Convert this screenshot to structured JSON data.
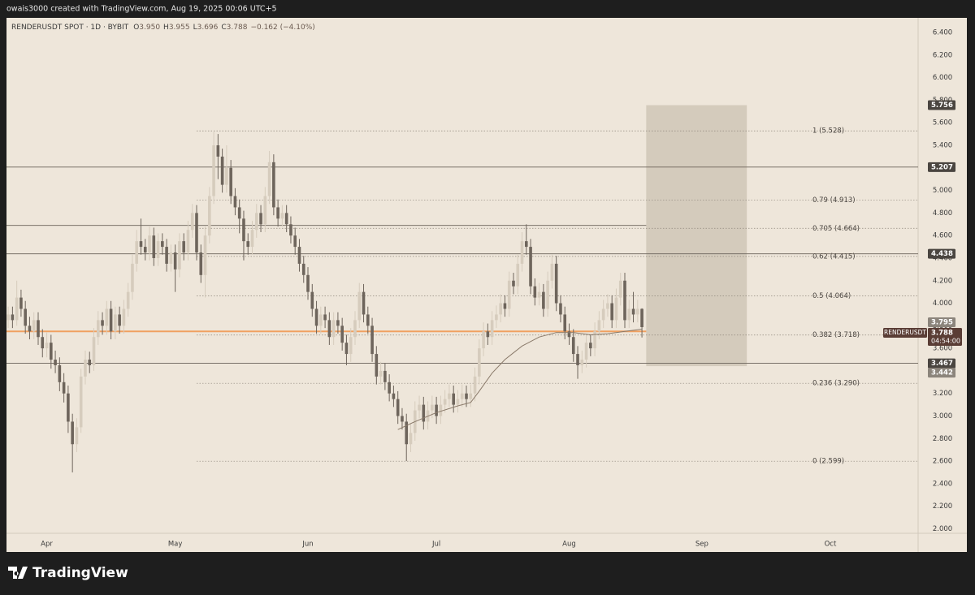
{
  "header": {
    "credit": "owais3000 created with TradingView.com, Aug 19, 2025 00:06 UTC+5"
  },
  "chart_data": {
    "type": "candlestick",
    "symbol": "RENDERUSDT SPOT · 1D · BYBIT",
    "legend": [
      {
        "key": "O",
        "value": "3.950"
      },
      {
        "key": "H",
        "value": "3.955"
      },
      {
        "key": "L",
        "value": "3.696"
      },
      {
        "key": "C",
        "value": "3.788"
      }
    ],
    "change": "−0.162 (−4.10%)",
    "symbol_tag": "RENDERUSDT",
    "countdown": "04:54:00",
    "up_color": "#d6ccbd",
    "down_color": "#6e655c",
    "xlim": [
      -0.4,
      212.5
    ],
    "xticks": [
      {
        "value": 9,
        "label": "Apr"
      },
      {
        "value": 39,
        "label": "May"
      },
      {
        "value": 70,
        "label": "Jun"
      },
      {
        "value": 100,
        "label": "Jul"
      },
      {
        "value": 131,
        "label": "Aug"
      },
      {
        "value": 162,
        "label": "Sep"
      },
      {
        "value": 192,
        "label": "Oct"
      }
    ],
    "ylim": [
      1.96,
      6.53
    ],
    "yticks": [
      {
        "value": 2.0,
        "label": "2.000"
      },
      {
        "value": 2.2,
        "label": "2.200"
      },
      {
        "value": 2.4,
        "label": "2.400"
      },
      {
        "value": 2.6,
        "label": "2.600"
      },
      {
        "value": 2.8,
        "label": "2.800"
      },
      {
        "value": 3.0,
        "label": "3.000"
      },
      {
        "value": 3.2,
        "label": "3.200"
      },
      {
        "value": 3.4,
        "label": "3.400"
      },
      {
        "value": 3.6,
        "label": "3.600"
      },
      {
        "value": 3.8,
        "label": "3.800"
      },
      {
        "value": 4.0,
        "label": "4.000"
      },
      {
        "value": 4.2,
        "label": "4.200"
      },
      {
        "value": 4.4,
        "label": "4.400"
      },
      {
        "value": 4.6,
        "label": "4.600"
      },
      {
        "value": 4.8,
        "label": "4.800"
      },
      {
        "value": 5.0,
        "label": "5.000"
      },
      {
        "value": 5.2,
        "label": "5.200"
      },
      {
        "value": 5.4,
        "label": "5.400"
      },
      {
        "value": 5.6,
        "label": "5.600"
      },
      {
        "value": 5.8,
        "label": "5.800"
      },
      {
        "value": 6.0,
        "label": "6.000"
      },
      {
        "value": 6.2,
        "label": "6.200"
      },
      {
        "value": 6.4,
        "label": "6.400"
      }
    ],
    "ohlc": [
      [
        3.85,
        3.97,
        3.78,
        3.9
      ],
      [
        3.9,
        3.97,
        3.78,
        3.85
      ],
      [
        3.85,
        4.2,
        3.8,
        4.05
      ],
      [
        4.05,
        4.12,
        3.88,
        3.95
      ],
      [
        3.95,
        4.02,
        3.73,
        3.8
      ],
      [
        3.8,
        3.88,
        3.68,
        3.75
      ],
      [
        3.75,
        3.92,
        3.68,
        3.85
      ],
      [
        3.85,
        3.92,
        3.63,
        3.7
      ],
      [
        3.7,
        3.77,
        3.52,
        3.6
      ],
      [
        3.6,
        3.74,
        3.52,
        3.65
      ],
      [
        3.65,
        3.72,
        3.42,
        3.5
      ],
      [
        3.5,
        3.58,
        3.38,
        3.45
      ],
      [
        3.45,
        3.52,
        3.22,
        3.3
      ],
      [
        3.3,
        3.38,
        3.12,
        3.2
      ],
      [
        3.2,
        3.27,
        2.85,
        2.95
      ],
      [
        2.95,
        3.02,
        2.5,
        2.75
      ],
      [
        2.75,
        2.98,
        2.68,
        2.9
      ],
      [
        2.9,
        3.42,
        2.85,
        3.35
      ],
      [
        3.35,
        3.58,
        3.28,
        3.5
      ],
      [
        3.5,
        3.57,
        3.38,
        3.45
      ],
      [
        3.45,
        3.78,
        3.4,
        3.7
      ],
      [
        3.7,
        3.93,
        3.63,
        3.85
      ],
      [
        3.85,
        3.92,
        3.72,
        3.8
      ],
      [
        3.8,
        4.02,
        3.72,
        3.95
      ],
      [
        3.95,
        4.02,
        3.68,
        3.75
      ],
      [
        3.75,
        3.97,
        3.68,
        3.9
      ],
      [
        3.9,
        3.97,
        3.73,
        3.8
      ],
      [
        3.8,
        4.03,
        3.73,
        3.95
      ],
      [
        3.95,
        4.18,
        3.88,
        4.1
      ],
      [
        4.1,
        4.43,
        4.03,
        4.35
      ],
      [
        4.35,
        4.65,
        4.28,
        4.55
      ],
      [
        4.55,
        4.75,
        4.43,
        4.5
      ],
      [
        4.5,
        4.57,
        4.38,
        4.45
      ],
      [
        4.45,
        4.68,
        4.38,
        4.6
      ],
      [
        4.6,
        4.67,
        4.33,
        4.4
      ],
      [
        4.4,
        4.62,
        4.33,
        4.55
      ],
      [
        4.55,
        4.62,
        4.43,
        4.5
      ],
      [
        4.5,
        4.57,
        4.28,
        4.35
      ],
      [
        4.35,
        4.52,
        4.28,
        4.45
      ],
      [
        4.45,
        4.52,
        4.1,
        4.3
      ],
      [
        4.3,
        4.62,
        4.23,
        4.55
      ],
      [
        4.55,
        4.62,
        4.38,
        4.45
      ],
      [
        4.45,
        4.73,
        4.38,
        4.65
      ],
      [
        4.65,
        4.88,
        4.58,
        4.8
      ],
      [
        4.8,
        4.87,
        4.38,
        4.45
      ],
      [
        4.45,
        4.52,
        4.18,
        4.25
      ],
      [
        4.25,
        4.68,
        4.05,
        4.6
      ],
      [
        4.6,
        5.03,
        4.53,
        4.95
      ],
      [
        4.95,
        5.52,
        4.88,
        5.4
      ],
      [
        5.4,
        5.5,
        5.1,
        5.3
      ],
      [
        5.3,
        5.37,
        4.98,
        5.05
      ],
      [
        5.05,
        5.4,
        4.98,
        5.2
      ],
      [
        5.2,
        5.27,
        4.88,
        4.95
      ],
      [
        4.95,
        5.02,
        4.78,
        4.85
      ],
      [
        4.85,
        4.92,
        4.62,
        4.75
      ],
      [
        4.75,
        4.82,
        4.38,
        4.55
      ],
      [
        4.55,
        4.62,
        4.43,
        4.5
      ],
      [
        4.5,
        4.73,
        4.43,
        4.65
      ],
      [
        4.65,
        4.88,
        4.58,
        4.8
      ],
      [
        4.8,
        4.87,
        4.63,
        4.7
      ],
      [
        4.7,
        5.03,
        4.63,
        4.95
      ],
      [
        4.95,
        5.35,
        4.88,
        5.25
      ],
      [
        5.25,
        5.32,
        4.78,
        4.85
      ],
      [
        4.85,
        4.92,
        4.68,
        4.75
      ],
      [
        4.75,
        4.87,
        4.68,
        4.8
      ],
      [
        4.8,
        4.87,
        4.63,
        4.7
      ],
      [
        4.7,
        4.77,
        4.53,
        4.6
      ],
      [
        4.6,
        4.67,
        4.43,
        4.5
      ],
      [
        4.5,
        4.57,
        4.28,
        4.35
      ],
      [
        4.35,
        4.42,
        4.18,
        4.25
      ],
      [
        4.25,
        4.32,
        4.03,
        4.1
      ],
      [
        4.1,
        4.17,
        3.88,
        3.95
      ],
      [
        3.95,
        4.02,
        3.73,
        3.8
      ],
      [
        3.8,
        3.97,
        3.73,
        3.9
      ],
      [
        3.9,
        3.97,
        3.78,
        3.85
      ],
      [
        3.85,
        3.92,
        3.63,
        3.7
      ],
      [
        3.7,
        3.92,
        3.63,
        3.85
      ],
      [
        3.85,
        3.92,
        3.73,
        3.8
      ],
      [
        3.8,
        3.87,
        3.58,
        3.65
      ],
      [
        3.65,
        3.72,
        3.45,
        3.55
      ],
      [
        3.55,
        3.78,
        3.48,
        3.7
      ],
      [
        3.7,
        3.93,
        3.63,
        3.85
      ],
      [
        3.85,
        4.18,
        3.78,
        4.1
      ],
      [
        4.1,
        4.17,
        3.83,
        3.9
      ],
      [
        3.9,
        3.97,
        3.73,
        3.8
      ],
      [
        3.8,
        3.87,
        3.48,
        3.55
      ],
      [
        3.55,
        3.62,
        3.28,
        3.35
      ],
      [
        3.35,
        3.48,
        3.28,
        3.4
      ],
      [
        3.4,
        3.47,
        3.23,
        3.3
      ],
      [
        3.3,
        3.37,
        3.13,
        3.2
      ],
      [
        3.2,
        3.27,
        3.08,
        3.15
      ],
      [
        3.15,
        3.22,
        2.93,
        3.0
      ],
      [
        3.0,
        3.07,
        2.88,
        2.95
      ],
      [
        2.95,
        3.02,
        2.6,
        2.75
      ],
      [
        2.75,
        2.93,
        2.68,
        2.85
      ],
      [
        2.85,
        3.13,
        2.78,
        3.05
      ],
      [
        3.05,
        3.18,
        2.98,
        3.1
      ],
      [
        3.1,
        3.17,
        2.88,
        2.95
      ],
      [
        2.95,
        3.13,
        2.88,
        3.05
      ],
      [
        3.05,
        3.18,
        2.98,
        3.1
      ],
      [
        3.1,
        3.17,
        2.93,
        3.0
      ],
      [
        3.0,
        3.18,
        2.93,
        3.1
      ],
      [
        3.1,
        3.23,
        3.03,
        3.15
      ],
      [
        3.15,
        3.28,
        3.08,
        3.2
      ],
      [
        3.2,
        3.27,
        3.03,
        3.1
      ],
      [
        3.1,
        3.23,
        3.03,
        3.15
      ],
      [
        3.15,
        3.28,
        3.08,
        3.2
      ],
      [
        3.2,
        3.27,
        3.08,
        3.15
      ],
      [
        3.15,
        3.28,
        3.08,
        3.2
      ],
      [
        3.2,
        3.43,
        3.13,
        3.35
      ],
      [
        3.35,
        3.68,
        3.28,
        3.6
      ],
      [
        3.6,
        3.83,
        3.53,
        3.75
      ],
      [
        3.75,
        3.82,
        3.63,
        3.7
      ],
      [
        3.7,
        3.93,
        3.63,
        3.85
      ],
      [
        3.85,
        3.98,
        3.78,
        3.9
      ],
      [
        3.9,
        4.08,
        3.83,
        4.0
      ],
      [
        4.0,
        4.07,
        3.88,
        3.95
      ],
      [
        3.95,
        4.28,
        3.88,
        4.2
      ],
      [
        4.2,
        4.27,
        4.08,
        4.15
      ],
      [
        4.15,
        4.43,
        4.08,
        4.35
      ],
      [
        4.35,
        4.63,
        4.28,
        4.55
      ],
      [
        4.55,
        4.7,
        4.43,
        4.5
      ],
      [
        4.5,
        4.57,
        4.08,
        4.15
      ],
      [
        4.15,
        4.22,
        3.98,
        4.05
      ],
      [
        4.05,
        4.18,
        3.98,
        4.1
      ],
      [
        4.1,
        4.17,
        3.88,
        3.95
      ],
      [
        3.95,
        4.28,
        3.88,
        4.2
      ],
      [
        4.2,
        4.43,
        4.13,
        4.35
      ],
      [
        4.35,
        4.42,
        3.93,
        4.0
      ],
      [
        4.0,
        4.07,
        3.83,
        3.9
      ],
      [
        3.9,
        3.97,
        3.68,
        3.75
      ],
      [
        3.75,
        3.82,
        3.63,
        3.7
      ],
      [
        3.7,
        3.77,
        3.48,
        3.55
      ],
      [
        3.55,
        3.62,
        3.33,
        3.45
      ],
      [
        3.45,
        3.58,
        3.38,
        3.5
      ],
      [
        3.5,
        3.73,
        3.43,
        3.65
      ],
      [
        3.65,
        3.72,
        3.53,
        3.6
      ],
      [
        3.6,
        3.83,
        3.53,
        3.75
      ],
      [
        3.75,
        3.93,
        3.68,
        3.85
      ],
      [
        3.85,
        4.03,
        3.78,
        3.95
      ],
      [
        3.95,
        4.08,
        3.88,
        4.0
      ],
      [
        4.0,
        4.07,
        3.78,
        3.85
      ],
      [
        3.85,
        4.13,
        3.78,
        4.05
      ],
      [
        4.05,
        4.27,
        3.98,
        4.2
      ],
      [
        4.2,
        4.27,
        3.78,
        3.85
      ],
      [
        3.85,
        4.03,
        3.78,
        3.95
      ],
      [
        3.95,
        4.1,
        3.83,
        3.9
      ],
      [
        3.9,
        4.03,
        3.83,
        3.95
      ],
      [
        3.95,
        3.955,
        3.696,
        3.788
      ]
    ],
    "ma": {
      "color": "#8a7a6a",
      "x": [
        91,
        95,
        100,
        105,
        108,
        110,
        113,
        116,
        120,
        124,
        128,
        132,
        136,
        140,
        144,
        148
      ],
      "values": [
        2.88,
        2.95,
        3.03,
        3.09,
        3.12,
        3.22,
        3.38,
        3.5,
        3.62,
        3.7,
        3.74,
        3.74,
        3.72,
        3.73,
        3.75,
        3.77
      ]
    },
    "fib_start": 44,
    "fib": [
      {
        "label": "1 (5.528)",
        "value": 5.528
      },
      {
        "label": "0.79 (4.913)",
        "value": 4.913
      },
      {
        "label": "0.705 (4.664)",
        "value": 4.664
      },
      {
        "label": "0.62 (4.415)",
        "value": 4.415
      },
      {
        "label": "0.5 (4.064)",
        "value": 4.064
      },
      {
        "label": "0.382 (3.718)",
        "value": 3.718
      },
      {
        "label": "0.236 (3.290)",
        "value": 3.29
      },
      {
        "label": "0 (2.599)",
        "value": 2.599
      }
    ],
    "hlines": [
      {
        "value": 5.207
      },
      {
        "value": 4.438
      },
      {
        "value": 3.467
      },
      {
        "value": 4.69,
        "end": 149
      }
    ],
    "support": {
      "value": 3.75,
      "end": 149,
      "color": "#f0a060"
    },
    "marker_price": 3.795,
    "box": {
      "top": 5.756,
      "bottom": 3.442,
      "start": 149,
      "end": 172.5,
      "color": "#cfc5b6"
    }
  }
}
